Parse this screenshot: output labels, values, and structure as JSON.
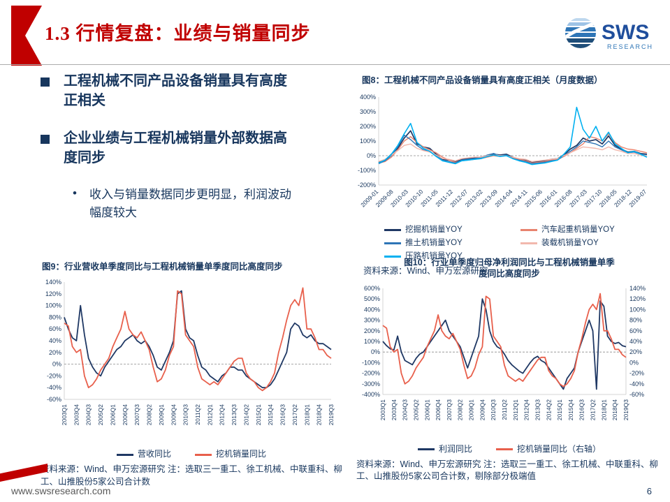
{
  "header": {
    "title": "1.3 行情复盘：业绩与销量同步",
    "logo_text": "SWS",
    "logo_subtext": "RESEARCH"
  },
  "bullets": {
    "marker": "•",
    "b1": "工程机械不同产品设备销量具有高度正相关",
    "b2": "企业业绩与工程机械销量外部数据高度同步",
    "sub1": "收入与销量数据同步更明显，利润波动幅度较大"
  },
  "footer": {
    "url": "www.swsresearch.com",
    "page_number": "6"
  },
  "colors": {
    "accent_red": "#C00000",
    "navy": "#17365D",
    "line_blue": "#1F3864",
    "line_red": "#E8604C",
    "line_cyan": "#00B0F0"
  },
  "chart_data": [
    {
      "id": "fig8",
      "type": "line",
      "title": "图8：工程机械不同产品设备销量具有高度正相关（月度数据）",
      "source": "资料来源：Wind、申万宏源研究",
      "ylim": [
        -200,
        400
      ],
      "yticks": [
        -200,
        -100,
        0,
        100,
        200,
        300,
        400
      ],
      "x_tick_labels": [
        "2009-01",
        "2009-08",
        "2010-03",
        "2010-10",
        "2011-05",
        "2011-12",
        "2012-07",
        "2013-02",
        "2013-09",
        "2014-04",
        "2014-11",
        "2015-06",
        "2016-01",
        "2016-08",
        "2017-03",
        "2017-10",
        "2018-05",
        "2018-12",
        "2019-07"
      ],
      "series": [
        {
          "name": "挖掘机销量YOY",
          "color": "#1F3864",
          "lw": 1.7,
          "values": [
            -45,
            -30,
            10,
            50,
            120,
            170,
            80,
            60,
            50,
            10,
            -25,
            -30,
            -40,
            -25,
            -20,
            -15,
            -10,
            0,
            10,
            5,
            10,
            -10,
            -25,
            -30,
            -45,
            -40,
            -35,
            -25,
            -20,
            5,
            45,
            70,
            120,
            100,
            110,
            80,
            135,
            70,
            45,
            25,
            30,
            15,
            10
          ]
        },
        {
          "name": "汽车起重机销量YOY",
          "color": "#E8836E",
          "lw": 1.4,
          "values": [
            -50,
            -40,
            -10,
            40,
            100,
            130,
            90,
            60,
            40,
            20,
            -10,
            -30,
            -45,
            -35,
            -30,
            -25,
            -20,
            -10,
            0,
            -5,
            0,
            -15,
            -25,
            -35,
            -50,
            -45,
            -40,
            -30,
            -25,
            -5,
            20,
            50,
            80,
            130,
            120,
            100,
            150,
            90,
            60,
            45,
            40,
            30,
            20
          ]
        },
        {
          "name": "推土机销量YOY",
          "color": "#2E75B6",
          "lw": 1.4,
          "values": [
            -55,
            -35,
            0,
            60,
            140,
            110,
            70,
            40,
            30,
            0,
            -30,
            -40,
            -50,
            -30,
            -25,
            -20,
            -15,
            5,
            15,
            0,
            5,
            -20,
            -30,
            -40,
            -55,
            -50,
            -45,
            -35,
            -30,
            0,
            30,
            60,
            100,
            90,
            80,
            60,
            100,
            60,
            40,
            20,
            25,
            10,
            5
          ]
        },
        {
          "name": "装载机销量YOY",
          "color": "#F2B8AD",
          "lw": 1.4,
          "values": [
            -40,
            -25,
            5,
            35,
            70,
            80,
            50,
            35,
            25,
            5,
            -20,
            -25,
            -35,
            -20,
            -15,
            -10,
            -10,
            0,
            5,
            0,
            0,
            -10,
            -20,
            -25,
            -40,
            -35,
            -30,
            -25,
            -20,
            0,
            20,
            40,
            60,
            55,
            50,
            40,
            60,
            40,
            30,
            15,
            15,
            5,
            0
          ]
        },
        {
          "name": "压路机销量YOY",
          "color": "#00B0F0",
          "lw": 1.6,
          "values": [
            -50,
            -30,
            10,
            70,
            150,
            220,
            90,
            50,
            30,
            -5,
            -35,
            -45,
            -55,
            -35,
            -30,
            -25,
            -20,
            -5,
            5,
            -5,
            0,
            -20,
            -35,
            -45,
            -60,
            -55,
            -50,
            -40,
            -30,
            10,
            60,
            330,
            180,
            120,
            200,
            100,
            160,
            80,
            50,
            20,
            30,
            10,
            -10
          ]
        }
      ]
    },
    {
      "id": "fig9",
      "type": "line",
      "title": "图9：行业营收单季度同比与工程机械销量单季度同比高度同步",
      "source": "资料来源：Wind、申万宏源研究 注：选取三一重工、徐工机械、中联重科、柳工、山推股份5家公司合计数",
      "ylim": [
        -60,
        140
      ],
      "yticks": [
        -60,
        -40,
        -20,
        0,
        20,
        40,
        60,
        80,
        100,
        120,
        140
      ],
      "x_tick_labels": [
        "2003Q1",
        "2003Q4",
        "2004Q3",
        "2005Q2",
        "2006Q1",
        "2006Q4",
        "2007Q3",
        "2008Q2",
        "2009Q1",
        "2009Q4",
        "2010Q3",
        "2011Q2",
        "2012Q1",
        "2012Q4",
        "2013Q3",
        "2014Q2",
        "2015Q1",
        "2015Q4",
        "2016Q3",
        "2017Q2",
        "2018Q1",
        "2018Q4",
        "2019Q3"
      ],
      "series": [
        {
          "name": "营收同比",
          "color": "#1F3864",
          "lw": 1.8,
          "values": [
            80,
            60,
            45,
            40,
            100,
            50,
            10,
            -5,
            -15,
            -20,
            -5,
            5,
            15,
            25,
            30,
            40,
            45,
            50,
            40,
            35,
            40,
            30,
            15,
            -5,
            -10,
            5,
            20,
            40,
            120,
            125,
            60,
            45,
            40,
            15,
            -5,
            -10,
            -20,
            -25,
            -30,
            -20,
            -15,
            -5,
            -5,
            -10,
            -10,
            -20,
            -25,
            -30,
            -35,
            -40,
            -40,
            -35,
            -25,
            -10,
            5,
            20,
            60,
            70,
            65,
            50,
            45,
            50,
            40,
            35,
            35,
            30,
            25
          ]
        },
        {
          "name": "挖机销量同比",
          "color": "#E8604C",
          "lw": 1.8,
          "values": [
            70,
            65,
            30,
            20,
            25,
            -20,
            -40,
            -35,
            -25,
            -10,
            0,
            10,
            30,
            45,
            60,
            90,
            60,
            50,
            45,
            55,
            40,
            25,
            -5,
            -30,
            -25,
            -10,
            15,
            30,
            125,
            120,
            50,
            40,
            30,
            -5,
            -25,
            -30,
            -35,
            -30,
            -35,
            -25,
            -15,
            -5,
            5,
            10,
            10,
            -15,
            -25,
            -30,
            -40,
            -45,
            -40,
            -30,
            -15,
            20,
            45,
            75,
            100,
            110,
            100,
            130,
            60,
            60,
            45,
            25,
            25,
            15,
            10
          ]
        }
      ]
    },
    {
      "id": "fig10",
      "type": "line",
      "title": "图10：行业单季度归母净利润同比与工程机械销量单季度同比高度同步",
      "source": "资料来源：Wind、申万宏源研究 注：选取三一重工、徐工机械、中联重科、柳工、山推股份5家公司合计数，剔除部分极端值",
      "ylim_left": [
        -400,
        600
      ],
      "yticks_left": [
        -400,
        -300,
        -200,
        -100,
        0,
        100,
        200,
        300,
        400,
        500,
        600
      ],
      "ylim_right": [
        -60,
        140
      ],
      "yticks_right": [
        -60,
        -40,
        -20,
        0,
        20,
        40,
        60,
        80,
        100,
        120,
        140
      ],
      "x_tick_labels": [
        "2003Q1",
        "2003Q4",
        "2004Q3",
        "2005Q2",
        "2006Q1",
        "2006Q4",
        "2007Q3",
        "2008Q2",
        "2009Q1",
        "2009Q4",
        "2010Q3",
        "2011Q2",
        "2012Q1",
        "2012Q4",
        "2013Q3",
        "2014Q2",
        "2015Q1",
        "2015Q4",
        "2016Q3",
        "2017Q2",
        "2018Q1",
        "2018Q4",
        "2019Q3"
      ],
      "series": [
        {
          "name": "利润同比",
          "axis": "left",
          "color": "#1F3864",
          "lw": 1.8,
          "values": [
            100,
            60,
            30,
            20,
            150,
            0,
            -80,
            -100,
            -120,
            -60,
            -20,
            0,
            50,
            100,
            150,
            200,
            250,
            300,
            200,
            150,
            100,
            50,
            -50,
            -150,
            -50,
            50,
            150,
            500,
            400,
            200,
            100,
            50,
            30,
            -20,
            -80,
            -120,
            -150,
            -180,
            -200,
            -150,
            -100,
            -60,
            -40,
            -80,
            -100,
            -150,
            -200,
            -250,
            -300,
            -350,
            -250,
            -200,
            -150,
            0,
            100,
            200,
            300,
            200,
            -350,
            480,
            430,
            150,
            100,
            80,
            90,
            60,
            50
          ]
        },
        {
          "name": "挖机销量同比（右轴）",
          "axis": "right",
          "color": "#E8604C",
          "lw": 1.8,
          "values": [
            70,
            65,
            30,
            20,
            25,
            -20,
            -40,
            -35,
            -25,
            -10,
            0,
            10,
            30,
            45,
            60,
            90,
            60,
            50,
            45,
            55,
            40,
            25,
            -5,
            -30,
            -25,
            -10,
            15,
            30,
            125,
            120,
            50,
            40,
            30,
            -5,
            -25,
            -30,
            -35,
            -30,
            -35,
            -25,
            -15,
            -5,
            5,
            10,
            10,
            -15,
            -25,
            -30,
            -40,
            -45,
            -40,
            -30,
            -15,
            20,
            45,
            75,
            100,
            110,
            100,
            130,
            60,
            60,
            45,
            25,
            25,
            15,
            10
          ]
        }
      ]
    }
  ]
}
